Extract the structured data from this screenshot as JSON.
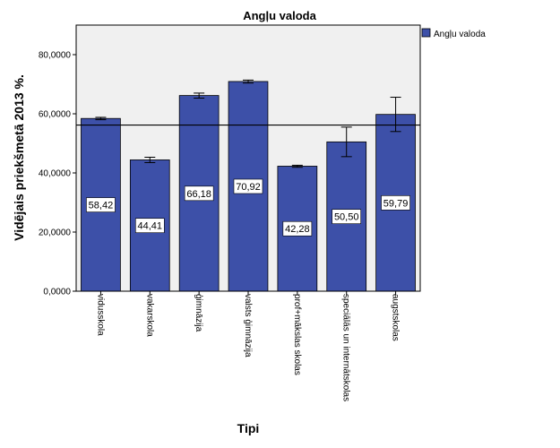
{
  "chart_data": {
    "type": "bar",
    "title": "Angļu valoda",
    "xlabel": "Tipi",
    "ylabel": "Vidējais priekšmetā 2013 %.",
    "ylim": [
      0,
      90
    ],
    "yticks": [
      0,
      20,
      40,
      60,
      80
    ],
    "ytick_labels": [
      "0,0000",
      "20,0000",
      "40,0000",
      "60,0000",
      "80,0000"
    ],
    "categories": [
      "vidusskola",
      "vakarskola",
      "ģimnāzija",
      "valsts ģimnāzija",
      "prof+mākslas skolas",
      "speciālās un internātskolas",
      "augstskolas"
    ],
    "series": [
      {
        "name": "Angļu valoda",
        "values": [
          58.42,
          44.41,
          66.18,
          70.92,
          42.28,
          50.5,
          59.79
        ],
        "value_labels": [
          "58,42",
          "44,41",
          "66,18",
          "70,92",
          "42,28",
          "50,50",
          "59,79"
        ],
        "error_low": [
          58.0,
          43.5,
          65.3,
          70.4,
          41.9,
          45.5,
          54.0
        ],
        "error_high": [
          58.8,
          45.3,
          67.0,
          71.4,
          42.6,
          55.5,
          65.6
        ],
        "color": "#3d50a8"
      }
    ],
    "reference_line": 56.2,
    "grid": false,
    "legend_position": "top-right",
    "plot_background": "#f0f0f0"
  }
}
